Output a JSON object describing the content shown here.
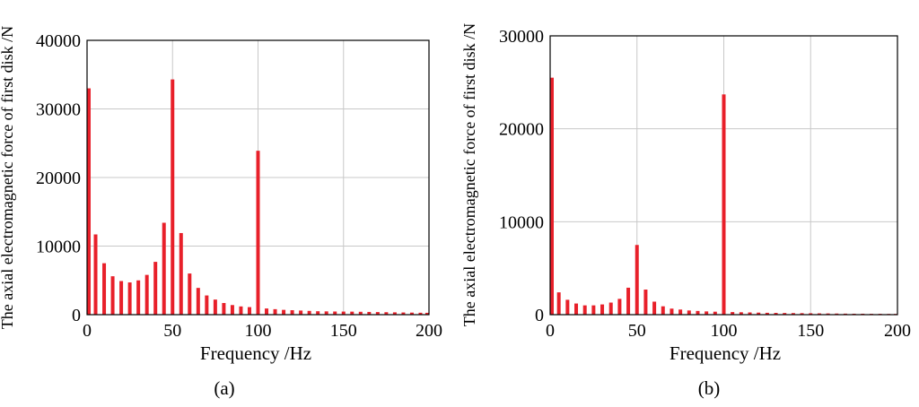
{
  "chart_data": [
    {
      "type": "bar",
      "caption": "(a)",
      "xlabel": "Frequency /Hz",
      "ylabel": "The axial electromagnetic force of first disk /N",
      "xlim": [
        0,
        200
      ],
      "ylim": [
        0,
        40000
      ],
      "xticks": [
        "0",
        "50",
        "100",
        "150",
        "200"
      ],
      "yticks": [
        "0",
        "10000",
        "20000",
        "30000",
        "40000"
      ],
      "grid": true,
      "color": "#e8202a",
      "x": [
        0,
        5,
        10,
        15,
        20,
        25,
        30,
        35,
        40,
        45,
        50,
        55,
        60,
        65,
        70,
        75,
        80,
        85,
        90,
        95,
        100,
        105,
        110,
        115,
        120,
        125,
        130,
        135,
        140,
        145,
        150,
        155,
        160,
        165,
        170,
        175,
        180,
        185,
        190,
        195,
        200
      ],
      "values": [
        33000,
        11700,
        7500,
        5600,
        4900,
        4700,
        5000,
        5800,
        7700,
        13400,
        34300,
        11900,
        6000,
        3900,
        2800,
        2200,
        1700,
        1400,
        1200,
        1100,
        23900,
        900,
        800,
        700,
        650,
        600,
        550,
        500,
        480,
        460,
        450,
        440,
        420,
        400,
        380,
        360,
        340,
        320,
        300,
        280,
        270
      ]
    },
    {
      "type": "bar",
      "caption": "(b)",
      "xlabel": "Frequency /Hz",
      "ylabel": "The axial electromagnetic force of first disk /N",
      "xlim": [
        0,
        200
      ],
      "ylim": [
        0,
        30000
      ],
      "xticks": [
        "0",
        "50",
        "100",
        "150",
        "200"
      ],
      "yticks": [
        "0",
        "10000",
        "20000",
        "30000"
      ],
      "grid": true,
      "color": "#e8202a",
      "x": [
        0,
        5,
        10,
        15,
        20,
        25,
        30,
        35,
        40,
        45,
        50,
        55,
        60,
        65,
        70,
        75,
        80,
        85,
        90,
        95,
        100,
        105,
        110,
        115,
        120,
        125,
        130,
        135,
        140,
        145,
        150,
        155,
        160,
        165,
        170,
        175,
        180,
        185,
        190,
        195,
        200
      ],
      "values": [
        25500,
        2400,
        1600,
        1200,
        1000,
        1000,
        1100,
        1300,
        1700,
        2900,
        7500,
        2700,
        1400,
        900,
        650,
        550,
        450,
        400,
        350,
        320,
        23700,
        280,
        260,
        240,
        220,
        200,
        190,
        180,
        170,
        160,
        150,
        140,
        130,
        120,
        110,
        100,
        100,
        90,
        90,
        80,
        80
      ]
    }
  ]
}
